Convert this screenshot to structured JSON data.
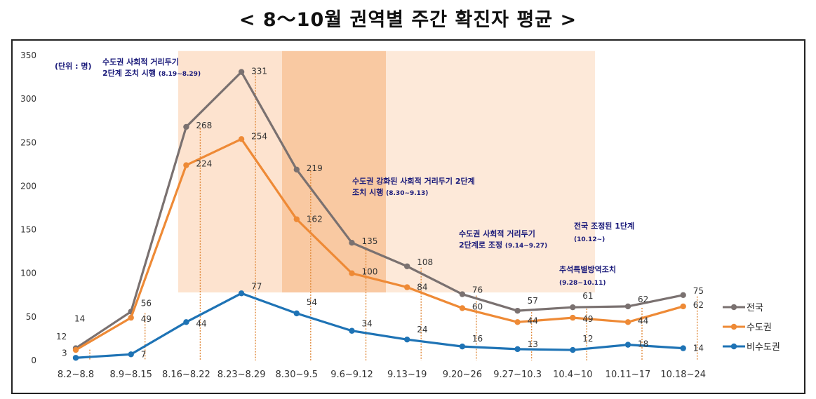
{
  "title": "< 8～10월 권역별 주간 확진자 평균 >",
  "chart_data": {
    "type": "line",
    "unit_label": "(단위 : 명)",
    "categories": [
      "8.2~8.8",
      "8.9~8.15",
      "8.16~8.22",
      "8.23~8.29",
      "8.30~9.5",
      "9.6~9.12",
      "9.13~19",
      "9.20~26",
      "9.27~10.3",
      "10.4~10",
      "10.11~17",
      "10.18~24"
    ],
    "ylim": [
      0,
      350
    ],
    "yticks": [
      0,
      50,
      100,
      150,
      200,
      250,
      300,
      350
    ],
    "series": [
      {
        "name": "전국",
        "color": "#7a7170",
        "values": [
          14,
          56,
          268,
          331,
          219,
          135,
          108,
          76,
          57,
          61,
          62,
          75
        ]
      },
      {
        "name": "수도권",
        "color": "#ee8a36",
        "values": [
          12,
          49,
          224,
          254,
          162,
          100,
          84,
          60,
          44,
          49,
          44,
          62
        ]
      },
      {
        "name": "비수도권",
        "color": "#1e73b5",
        "values": [
          3,
          7,
          44,
          77,
          54,
          34,
          24,
          16,
          13,
          12,
          18,
          14
        ]
      }
    ],
    "shaded_periods": [
      {
        "from_category": 2,
        "to_category": 4,
        "ytop": 355,
        "ybottom": 78,
        "color": "#fde3cf"
      },
      {
        "from_category": 4,
        "to_category": 5,
        "ytop": 355,
        "ybottom": 78,
        "color": "#f9c9a2"
      },
      {
        "from_category": 5,
        "to_category": 9,
        "ytop": 355,
        "ybottom": 78,
        "color": "#fde9d9"
      }
    ],
    "annotations": [
      {
        "line1": "수도권 사회적 거리두기",
        "line2": "2단계 조치 시행",
        "period": "(8.19~8.29)"
      },
      {
        "line1": "수도권 강화된 사회적 거리두기 2단계",
        "line2": "조치 시행",
        "period": "(8.30~9.13)"
      },
      {
        "line1": "수도권 사회적 거리두기",
        "line2": "2단계로 조정",
        "period": "(9.14~9.27)"
      },
      {
        "line1": "전국 조정된 1단계",
        "line2": "",
        "period": "(10.12~)"
      },
      {
        "line1": "추석특별방역조치",
        "line2": "",
        "period": "(9.28~10.11)"
      }
    ]
  }
}
